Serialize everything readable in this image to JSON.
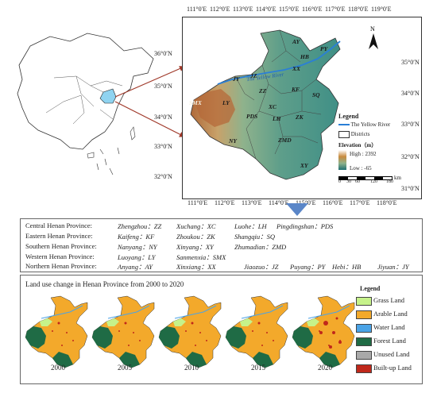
{
  "main_map": {
    "top_ticks": [
      "111°0′E",
      "112°0′E",
      "113°0′E",
      "114°0′E",
      "115°0′E",
      "116°0′E",
      "117°0′E",
      "118°0′E",
      "119°0′E"
    ],
    "bottom_ticks": [
      "111°0′E",
      "112°0′E",
      "113°0′E",
      "114°0′E",
      "115°0′E",
      "116°0′E",
      "117°0′E",
      "118°0′E"
    ],
    "left_ticks": [
      "36°0′N",
      "35°0′N",
      "34°0′N",
      "33°0′N",
      "32°0′N"
    ],
    "right_ticks": [
      "35°0′N",
      "34°0′N",
      "33°0′N",
      "32°0′N",
      "31°0′N"
    ],
    "north_label": "N",
    "river_label": "The Yellow River",
    "districts": [
      "AY",
      "HB",
      "PY",
      "XX",
      "JY",
      "JZ",
      "ZZ",
      "KF",
      "SQ",
      "SMX",
      "LY",
      "XC",
      "LH",
      "PDS",
      "ZK",
      "NY",
      "ZMD",
      "XY"
    ],
    "legend": {
      "title": "Legend",
      "river": "The Yellow River",
      "districts": "Districts",
      "elevation_title": "Elevation（m）",
      "high": "High : 2392",
      "low": "Low : -65",
      "scale": [
        "0",
        "30",
        "60",
        "120",
        "180"
      ],
      "scale_unit": "km"
    }
  },
  "abbreviations": [
    {
      "province": "Central Henan Province:",
      "items": [
        "Zhengzhou：ZZ",
        "Xuchang：XC",
        "Luohe：LH",
        "Pingdingshan：PDS"
      ]
    },
    {
      "province": "Eastern Henan Province:",
      "items": [
        "Kaifeng：KF",
        "Zhoukou：ZK",
        "Shangqiu：SQ"
      ]
    },
    {
      "province": "Southern Henan Province:",
      "items": [
        "Nanyang：NY",
        "Xinyang：XY",
        "Zhumadian：ZMD"
      ]
    },
    {
      "province": "Western Henan Province:",
      "items": [
        "Luoyang：LY",
        "Sanmenxia：SMX"
      ]
    },
    {
      "province": "Northern Henan Province:",
      "items": [
        "Anyang：AY",
        "Xinxiang：XX",
        "Jiaozuo：JZ",
        "Puyang：PY",
        "Hebi：HB",
        "Jiyuan：JY"
      ]
    }
  ],
  "land_use": {
    "title": "Land use change in Henan Province from 2000 to 2020",
    "years": [
      "2000",
      "2005",
      "2010",
      "2015",
      "2020"
    ],
    "legend_title": "Legend",
    "classes": [
      {
        "label": "Grass Land",
        "color": "#c6f28a"
      },
      {
        "label": "Arable Land",
        "color": "#f3a92b"
      },
      {
        "label": "Water Land",
        "color": "#4aa3e6"
      },
      {
        "label": "Forest Land",
        "color": "#1f6b45"
      },
      {
        "label": "Unused Land",
        "color": "#a9a9a9"
      },
      {
        "label": "Built-up Land",
        "color": "#c0281b"
      }
    ]
  },
  "colors": {
    "river": "#2a7fd6",
    "terrain_low": "#3f8f86",
    "terrain_high": "#b06a3a",
    "pointer_arrow": "#a0392a",
    "down_arrow": "#5a86c8"
  }
}
